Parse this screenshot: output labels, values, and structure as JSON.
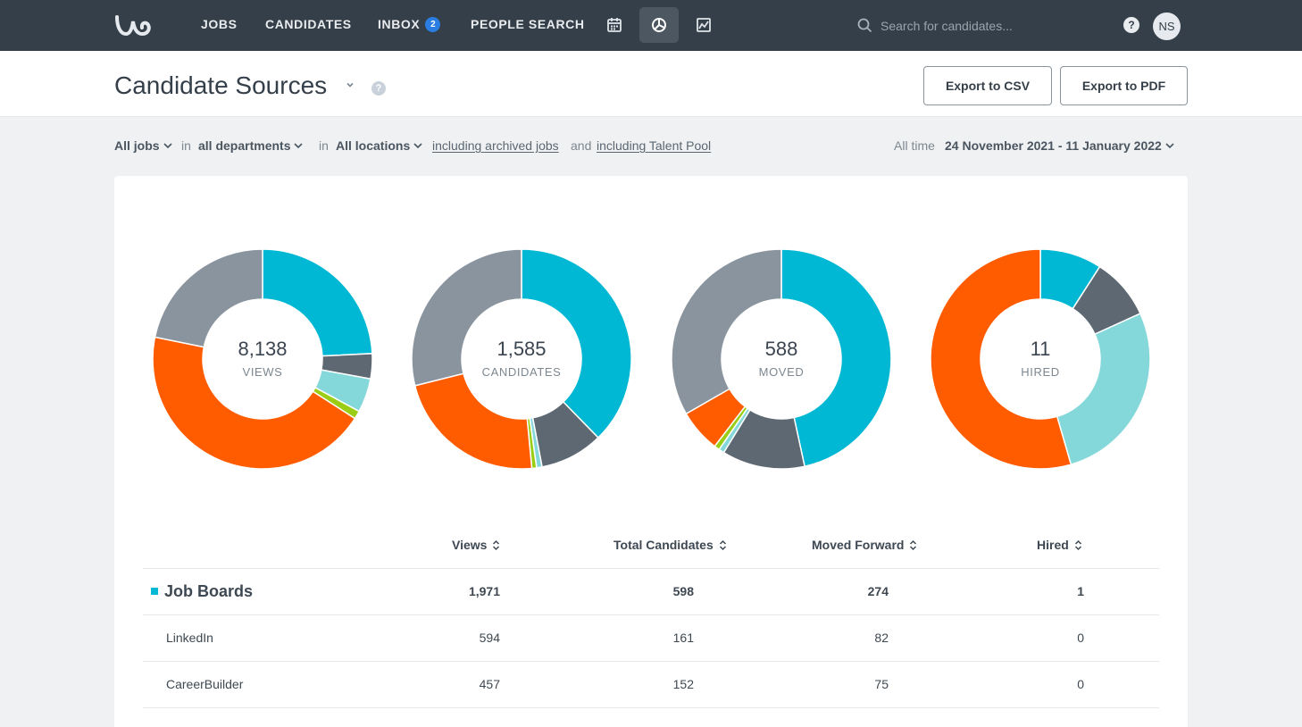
{
  "nav": {
    "items": [
      "JOBS",
      "CANDIDATES",
      "INBOX",
      "PEOPLE SEARCH"
    ],
    "inbox_badge": "2",
    "icons": [
      "calendar-icon",
      "pie-chart-icon",
      "line-chart-icon"
    ],
    "search_placeholder": "Search for candidates...",
    "help": "?",
    "avatar": "NS"
  },
  "header": {
    "title": "Candidate Sources",
    "help": "?",
    "export_csv": "Export to CSV",
    "export_pdf": "Export to PDF"
  },
  "filters": {
    "jobs": "All jobs",
    "in1": "in",
    "departments": "all departments",
    "in2": "in",
    "locations": "All locations",
    "archived": "including archived jobs",
    "and": "and",
    "talent_pool": "including Talent Pool",
    "period_label": "All time",
    "date_range": "24 November 2021 - 11 January 2022"
  },
  "colors": {
    "job_boards": "#00b8d4",
    "dark_gray": "#5d6872",
    "light_teal": "#85d8da",
    "lime": "#9acd14",
    "orange": "#ff5c00",
    "gray": "#8a949f"
  },
  "donuts": [
    {
      "value": "8,138",
      "label": "VIEWS"
    },
    {
      "value": "1,585",
      "label": "CANDIDATES"
    },
    {
      "value": "588",
      "label": "MOVED"
    },
    {
      "value": "11",
      "label": "HIRED"
    }
  ],
  "chart_data": {
    "type": "pie",
    "variant": "donut",
    "charts": [
      {
        "center_value": "8,138",
        "center_label": "VIEWS",
        "slices": [
          {
            "color": "#00b8d4",
            "share": 0.242
          },
          {
            "color": "#5d6872",
            "share": 0.037
          },
          {
            "color": "#85d8da",
            "share": 0.05
          },
          {
            "color": "#9acd14",
            "share": 0.012
          },
          {
            "color": "#ff5c00",
            "share": 0.441
          },
          {
            "color": "#8a949f",
            "share": 0.218
          }
        ]
      },
      {
        "center_value": "1,585",
        "center_label": "CANDIDATES",
        "slices": [
          {
            "color": "#00b8d4",
            "share": 0.377
          },
          {
            "color": "#5d6872",
            "share": 0.093
          },
          {
            "color": "#85d8da",
            "share": 0.008
          },
          {
            "color": "#9acd14",
            "share": 0.007
          },
          {
            "color": "#ff5c00",
            "share": 0.226
          },
          {
            "color": "#8a949f",
            "share": 0.289
          }
        ]
      },
      {
        "center_value": "588",
        "center_label": "MOVED",
        "slices": [
          {
            "color": "#00b8d4",
            "share": 0.466
          },
          {
            "color": "#5d6872",
            "share": 0.122
          },
          {
            "color": "#85d8da",
            "share": 0.008
          },
          {
            "color": "#9acd14",
            "share": 0.008
          },
          {
            "color": "#ff5c00",
            "share": 0.063
          },
          {
            "color": "#8a949f",
            "share": 0.333
          }
        ]
      },
      {
        "center_value": "11",
        "center_label": "HIRED",
        "slices": [
          {
            "color": "#00b8d4",
            "share": 0.091
          },
          {
            "color": "#5d6872",
            "share": 0.091
          },
          {
            "color": "#85d8da",
            "share": 0.273
          },
          {
            "color": "#ff5c00",
            "share": 0.545
          }
        ]
      }
    ]
  },
  "table": {
    "columns": [
      "Views",
      "Total Candidates",
      "Moved Forward",
      "Hired"
    ],
    "rows": [
      {
        "name": "Job Boards",
        "views": "1,971",
        "candidates": "598",
        "moved": "274",
        "hired": "1",
        "group": true
      },
      {
        "name": "LinkedIn",
        "views": "594",
        "candidates": "161",
        "moved": "82",
        "hired": "0",
        "group": false
      },
      {
        "name": "CareerBuilder",
        "views": "457",
        "candidates": "152",
        "moved": "75",
        "hired": "0",
        "group": false
      }
    ]
  }
}
